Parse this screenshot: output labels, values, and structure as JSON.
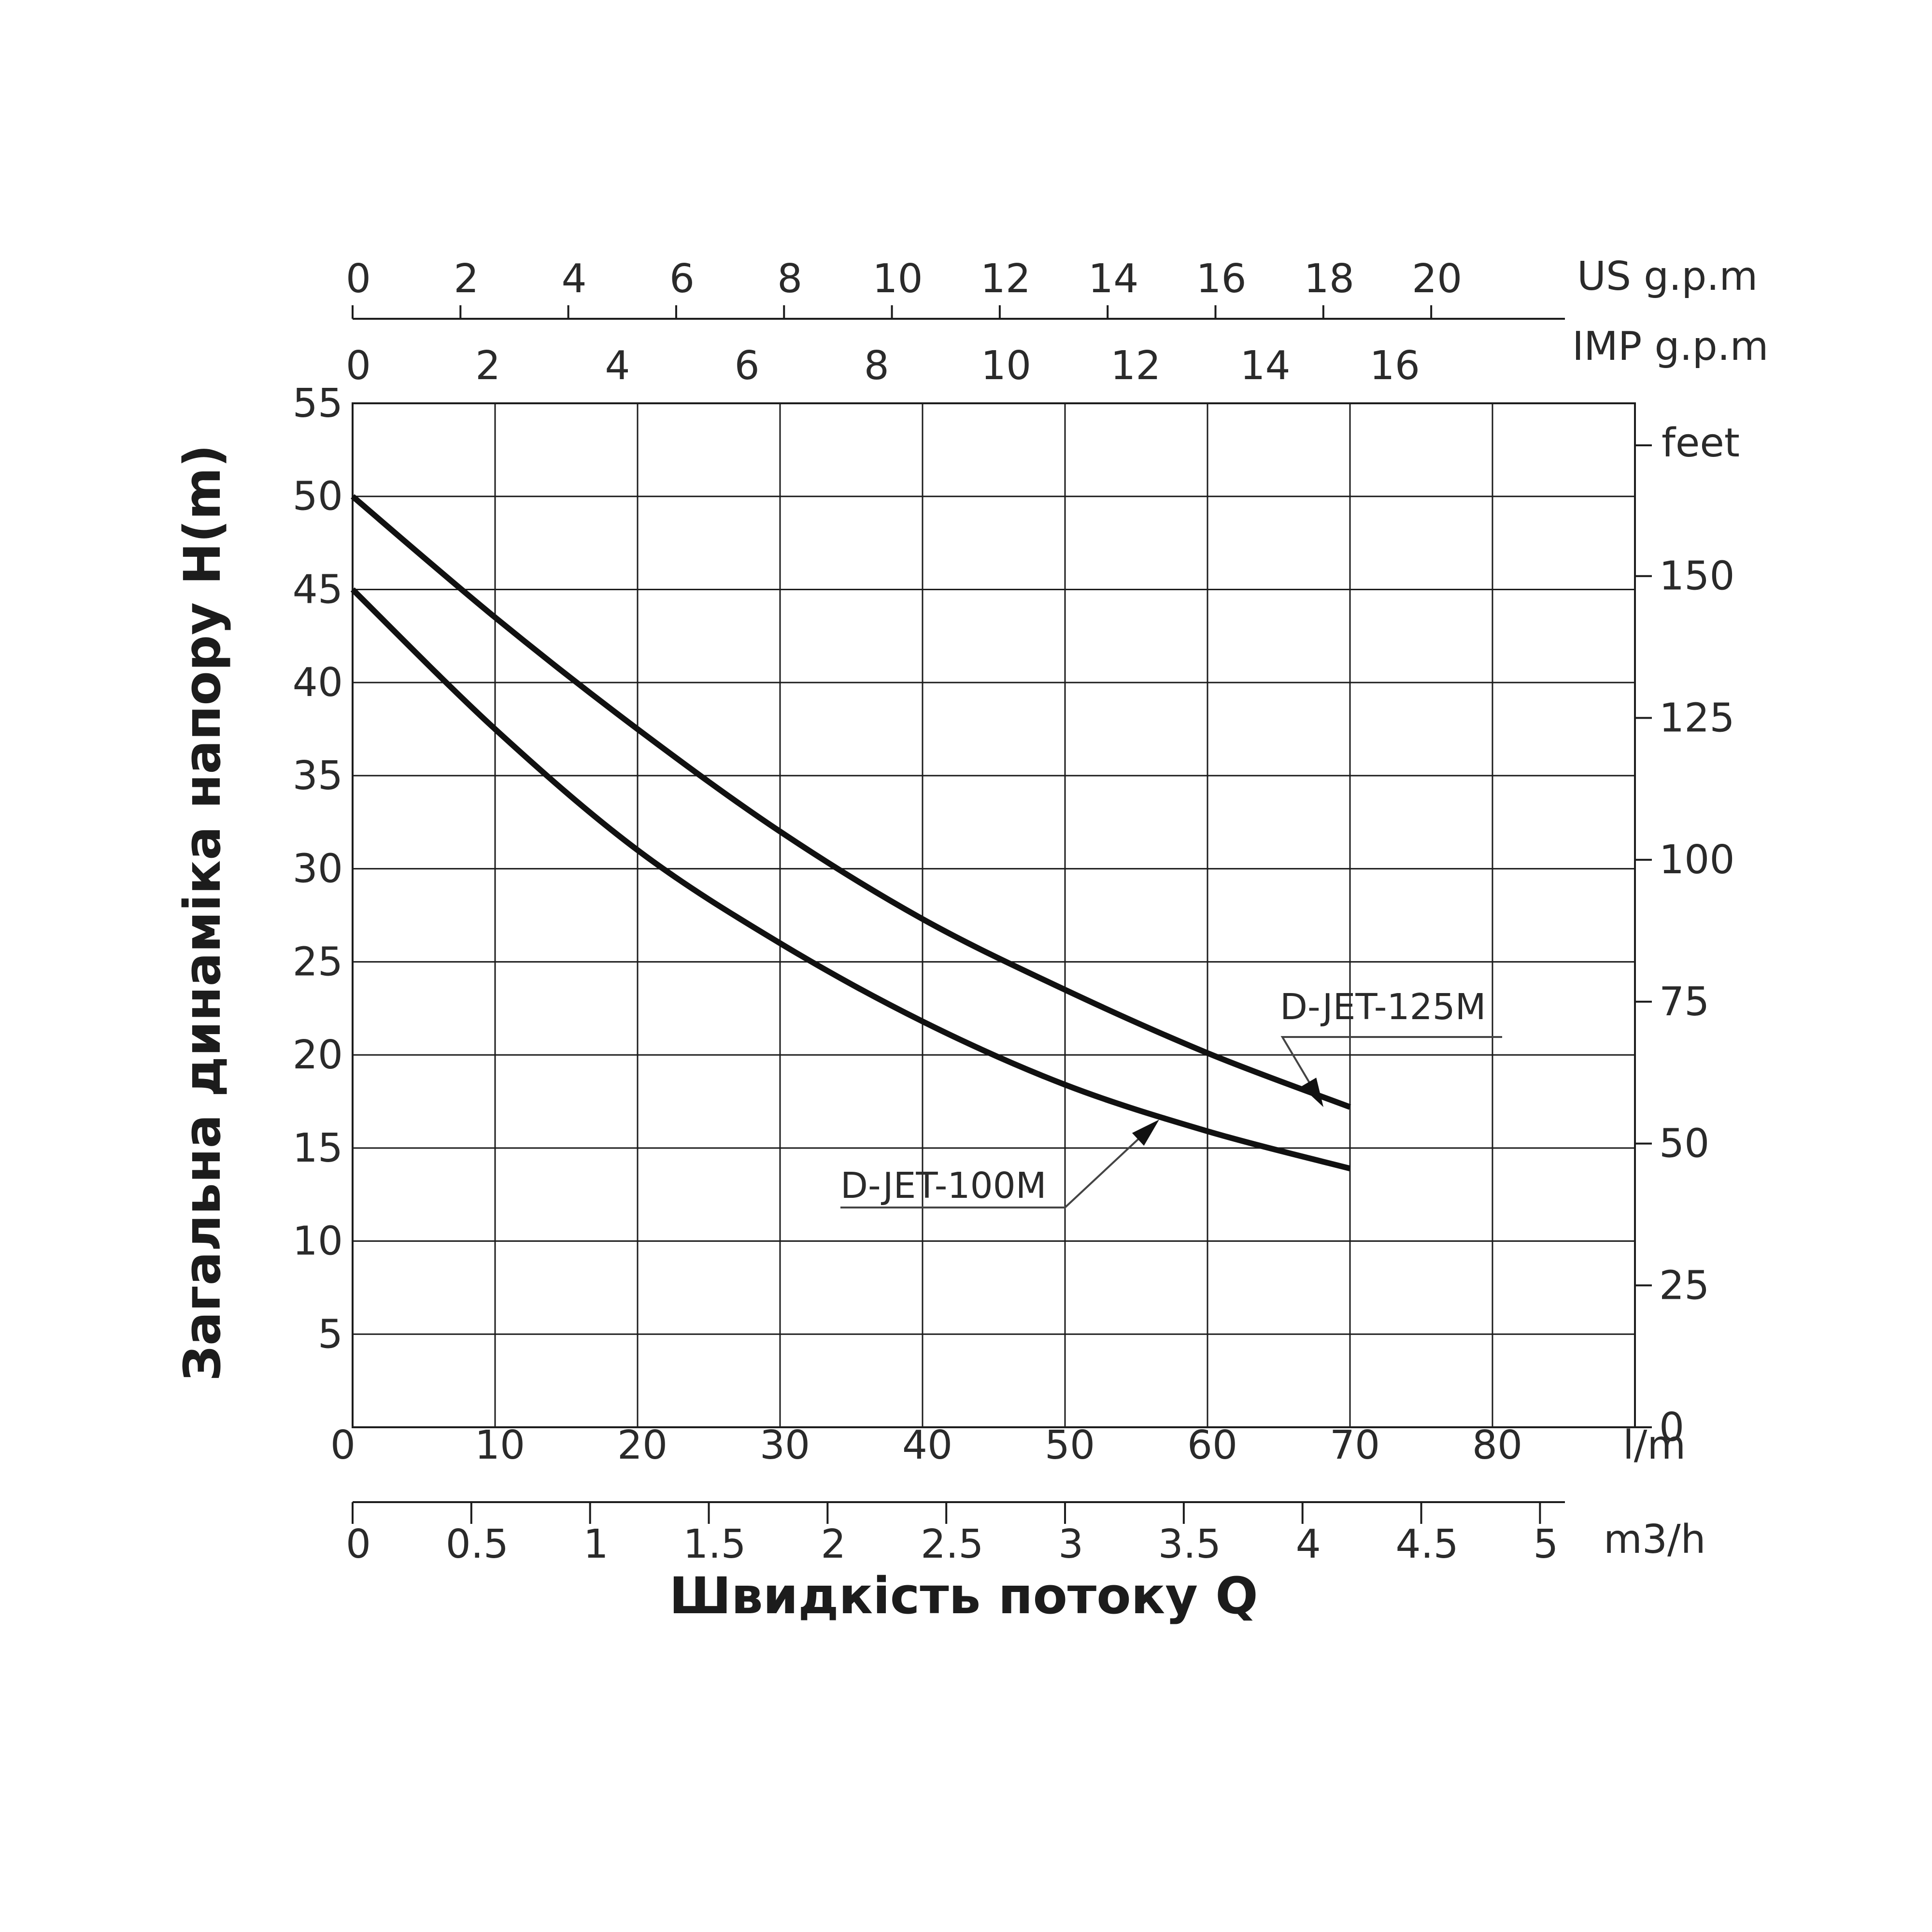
{
  "chart_data": {
    "type": "line",
    "title": "",
    "xlabel": "Швидкість потоку Q",
    "ylabel": "Загальна динаміка напору H(m)",
    "x_unit": "l/m",
    "xlim": [
      0,
      90
    ],
    "ylim": [
      0,
      55
    ],
    "grid": true,
    "x_ticks": [
      "0",
      "10",
      "20",
      "30",
      "40",
      "50",
      "60",
      "70",
      "80"
    ],
    "y_ticks": [
      "5",
      "10",
      "15",
      "20",
      "25",
      "30",
      "35",
      "40",
      "45",
      "50",
      "55"
    ],
    "secondary_axes": {
      "us_gpm": {
        "unit": "US g.p.m",
        "ticks": [
          "0",
          "2",
          "4",
          "6",
          "8",
          "10",
          "12",
          "14",
          "16",
          "18",
          "20"
        ],
        "values": [
          0,
          2,
          4,
          6,
          8,
          10,
          12,
          14,
          16,
          18,
          20
        ],
        "lpm_per_unit": 3.785
      },
      "imp_gpm": {
        "unit": "IMP g.p.m",
        "ticks": [
          "0",
          "2",
          "4",
          "6",
          "8",
          "10",
          "12",
          "14",
          "16"
        ],
        "values": [
          0,
          2,
          4,
          6,
          8,
          10,
          12,
          14,
          16
        ],
        "lpm_per_unit": 4.546
      },
      "m3h": {
        "unit": "m3/h",
        "ticks": [
          "0",
          "0.5",
          "1",
          "1.5",
          "2",
          "2.5",
          "3",
          "3.5",
          "4",
          "4.5",
          "5"
        ],
        "values": [
          0,
          0.5,
          1,
          1.5,
          2,
          2.5,
          3,
          3.5,
          4,
          4.5,
          5
        ],
        "lpm_per_unit": 16.667
      },
      "feet": {
        "unit": "feet",
        "ticks": [
          "0",
          "25",
          "50",
          "75",
          "100",
          "125",
          "150"
        ],
        "values": [
          0,
          25,
          50,
          75,
          100,
          125,
          150
        ],
        "m_per_unit": 0.3048
      }
    },
    "series": [
      {
        "name": "D-JET-125M",
        "x": [
          0,
          10,
          20,
          30,
          40,
          50,
          60,
          70
        ],
        "y": [
          50,
          43.5,
          37.5,
          32,
          27.3,
          23.5,
          20.1,
          17.2
        ]
      },
      {
        "name": "D-JET-100M",
        "x": [
          0,
          10,
          20,
          30,
          40,
          50,
          60,
          70
        ],
        "y": [
          45,
          37.5,
          31,
          26,
          21.8,
          18.4,
          15.9,
          13.9
        ]
      }
    ]
  }
}
